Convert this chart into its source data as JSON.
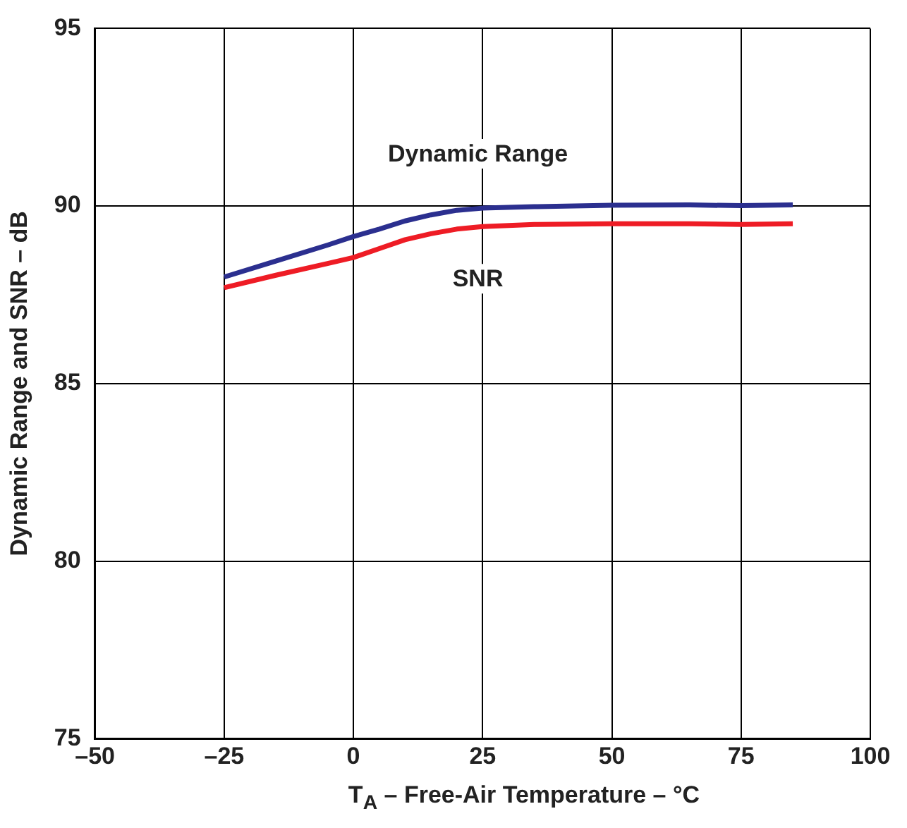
{
  "chart_data": {
    "type": "line",
    "x": [
      -25,
      -15,
      -5,
      0,
      5,
      10,
      15,
      20,
      25,
      35,
      50,
      65,
      75,
      85
    ],
    "series": [
      {
        "name": "Dynamic Range",
        "color": "#2b2f8f",
        "values": [
          88.0,
          88.45,
          88.9,
          89.14,
          89.35,
          89.58,
          89.75,
          89.88,
          89.94,
          89.98,
          90.02,
          90.03,
          90.01,
          90.03
        ]
      },
      {
        "name": "SNR",
        "color": "#ee1c25",
        "values": [
          87.7,
          88.05,
          88.38,
          88.55,
          88.8,
          89.05,
          89.22,
          89.35,
          89.42,
          89.48,
          89.5,
          89.5,
          89.48,
          89.5
        ]
      }
    ],
    "xlabel": "T$_{A}$ – Free-Air Temperature – °C",
    "ylabel": "Dynamic Range and SNR – dB",
    "xlim": [
      -50,
      100
    ],
    "xticks": [
      {
        "value": -50,
        "label": "–50"
      },
      {
        "value": -25,
        "label": "–25"
      },
      0,
      25,
      50,
      75,
      100
    ],
    "ylim": [
      75,
      95
    ],
    "yticks": [
      75,
      80,
      85,
      90,
      95
    ],
    "grid": true,
    "legend": false,
    "marker": "none",
    "line_style": "solid"
  }
}
